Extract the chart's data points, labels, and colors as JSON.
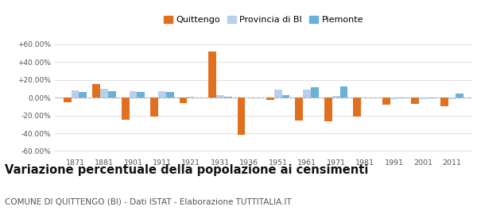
{
  "years": [
    1871,
    1881,
    1901,
    1911,
    1921,
    1931,
    1936,
    1951,
    1961,
    1971,
    1981,
    1991,
    2001,
    2011
  ],
  "quittengo": [
    -5.0,
    15.0,
    -25.0,
    -21.0,
    -6.0,
    52.0,
    -42.0,
    -2.5,
    -26.0,
    -27.0,
    -21.0,
    -8.0,
    -7.0,
    -10.0
  ],
  "provincia_bi": [
    8.0,
    10.0,
    7.0,
    7.0,
    1.5,
    3.0,
    0.5,
    9.0,
    9.0,
    2.0,
    0.0,
    -1.5,
    -1.5,
    -1.5
  ],
  "piemonte": [
    6.0,
    7.0,
    6.5,
    6.5,
    0.5,
    1.5,
    0.5,
    3.0,
    12.0,
    13.0,
    0.5,
    -1.0,
    -1.0,
    5.0
  ],
  "color_quittengo": "#e07020",
  "color_provincia": "#b8d0ea",
  "color_piemonte": "#6ab0d8",
  "ylim": [
    -65,
    65
  ],
  "yticks": [
    -60,
    -40,
    -20,
    0,
    20,
    40,
    60
  ],
  "title": "Variazione percentuale della popolazione ai censimenti",
  "subtitle": "COMUNE DI QUITTENGO (BI) - Dati ISTAT - Elaborazione TUTTITALIA.IT",
  "legend_labels": [
    "Quittengo",
    "Provincia di BI",
    "Piemonte"
  ],
  "bar_width": 0.27,
  "grid_color": "#d8d8d8",
  "background_color": "#ffffff",
  "title_fontsize": 10.5,
  "subtitle_fontsize": 7.5
}
